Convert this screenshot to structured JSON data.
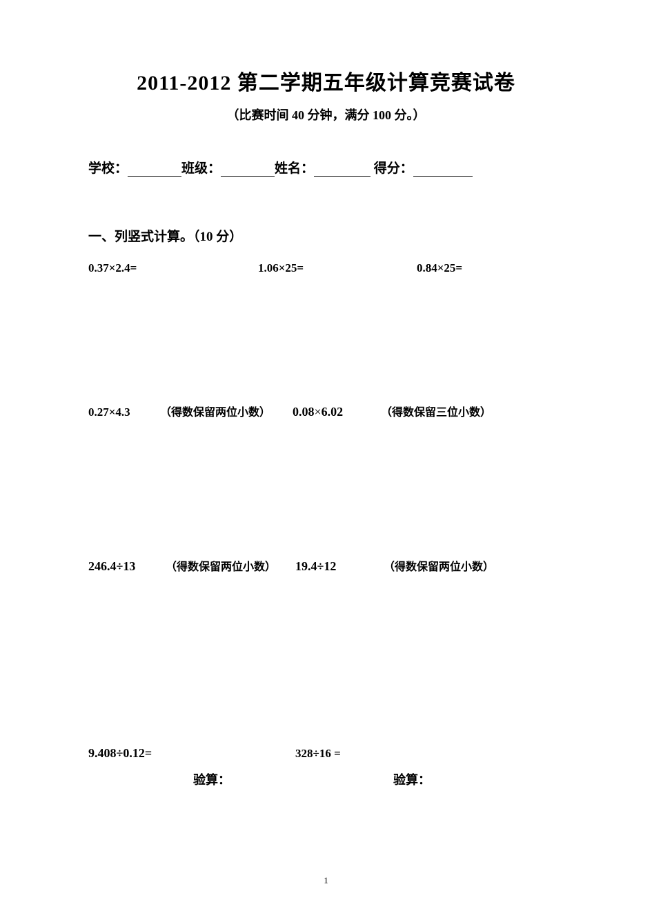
{
  "title": "2011-2012 第二学期五年级计算竞赛试卷",
  "subtitle": "（比赛时间 40 分钟，满分 100 分。）",
  "info": {
    "school_label": "学校：",
    "class_label": "班级：",
    "name_label": "姓名：",
    "score_label": " 得分："
  },
  "section_heading": "一、列竖式计算。（10 分）",
  "row1": {
    "q1": "0.37×2.4=",
    "q2": "1.06×25=",
    "q3": "0.84×25="
  },
  "row2": {
    "q1": "0.27×4.3",
    "note1": "（得数保留两位小数）",
    "q2": "0.08",
    "q2_mid": "×",
    "q2_end": "6.02",
    "note2": "（得数保留三位小数）"
  },
  "row3": {
    "q1": "246.4÷13",
    "note1": "（得数保留两位小数）",
    "q2": "19.4÷12",
    "note2": "（得数保留两位小数）"
  },
  "row4": {
    "q1": "9.408÷0.12=",
    "q2": "328÷16 ="
  },
  "verify": {
    "label1": "验算：",
    "label2": "验算："
  },
  "page_number": "1",
  "colors": {
    "text": "#000000",
    "background": "#ffffff"
  }
}
